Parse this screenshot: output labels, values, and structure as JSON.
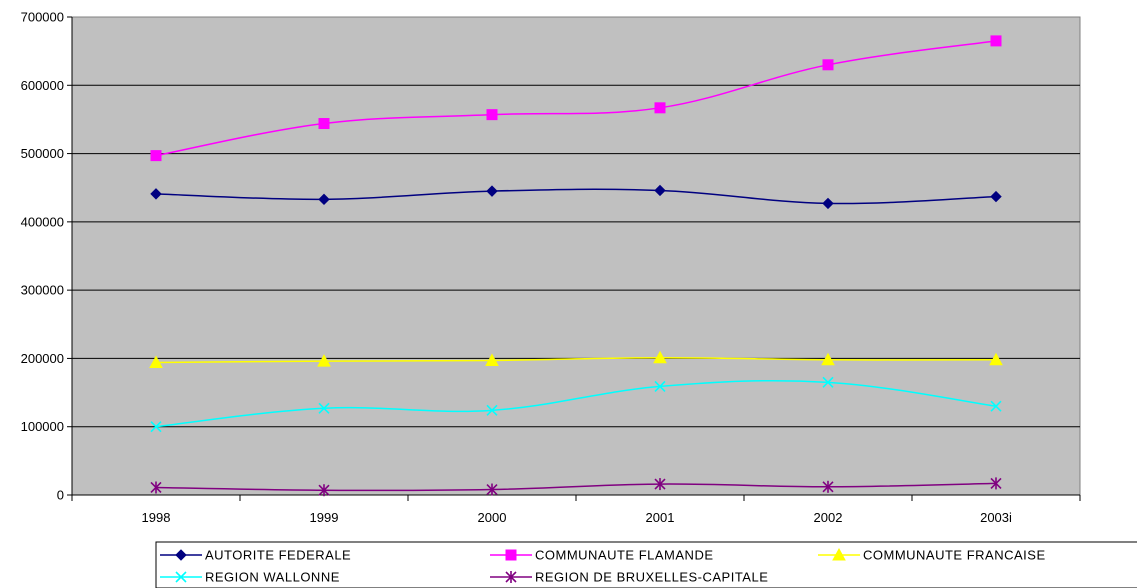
{
  "chart_data": {
    "type": "line",
    "categories": [
      "1998",
      "1999",
      "2000",
      "2001",
      "2002",
      "2003i"
    ],
    "ylim": [
      0,
      700000
    ],
    "yticks": [
      0,
      100000,
      200000,
      300000,
      400000,
      500000,
      600000,
      700000
    ],
    "ytick_labels": [
      "0",
      "100000",
      "200000",
      "300000",
      "400000",
      "500000",
      "600000",
      "700000"
    ],
    "grid": "horizontal",
    "plot_background": "#C0C0C0",
    "legend_position": "bottom",
    "series": [
      {
        "name": "AUTORITE FEDERALE",
        "color": "#000080",
        "marker": "diamond",
        "values": [
          441000,
          433000,
          445000,
          446000,
          427000,
          437000
        ]
      },
      {
        "name": "COMMUNAUTE FLAMANDE",
        "color": "#FF00FF",
        "marker": "square",
        "values": [
          497000,
          544000,
          557000,
          567000,
          630000,
          665000
        ]
      },
      {
        "name": "COMMUNAUTE FRANCAISE",
        "color": "#FFFF00",
        "marker": "triangle",
        "values": [
          194000,
          196000,
          197000,
          201000,
          198000,
          198000
        ]
      },
      {
        "name": "REGION WALLONNE",
        "color": "#00FFFF",
        "marker": "x",
        "values": [
          100000,
          127000,
          124000,
          159000,
          165000,
          130000
        ]
      },
      {
        "name": "REGION DE BRUXELLES-CAPITALE",
        "color": "#800080",
        "marker": "asterisk",
        "values": [
          11000,
          7000,
          8000,
          16000,
          12000,
          17000
        ]
      }
    ]
  }
}
